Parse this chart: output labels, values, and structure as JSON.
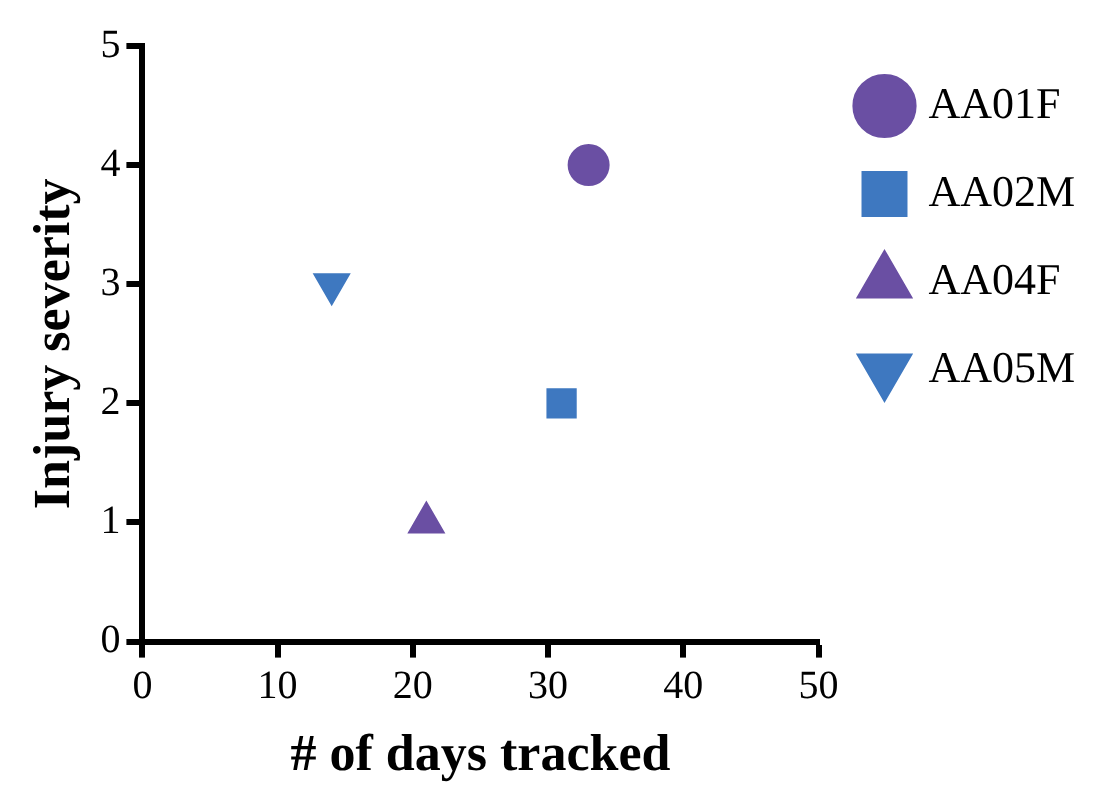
{
  "chart_data": {
    "type": "scatter",
    "xlabel": "# of days tracked",
    "ylabel": "Injury severity",
    "xlim": [
      0,
      50
    ],
    "xticks": [
      0,
      10,
      20,
      30,
      40,
      50
    ],
    "ylim": [
      0,
      5
    ],
    "yticks": [
      0,
      1,
      2,
      3,
      4,
      5
    ],
    "grid": false,
    "legend": "right",
    "series": [
      {
        "name": "AA01F",
        "color": "#6a4fa3",
        "marker": "circle",
        "x": [
          33
        ],
        "values": [
          4
        ]
      },
      {
        "name": "AA02M",
        "color": "#3e78c0",
        "marker": "square",
        "x": [
          31
        ],
        "values": [
          2
        ]
      },
      {
        "name": "AA04F",
        "color": "#6a4fa3",
        "marker": "triangle",
        "x": [
          21
        ],
        "values": [
          1
        ]
      },
      {
        "name": "AA05M",
        "color": "#3e78c0",
        "marker": "triangle-down",
        "x": [
          14
        ],
        "values": [
          3
        ]
      }
    ]
  }
}
